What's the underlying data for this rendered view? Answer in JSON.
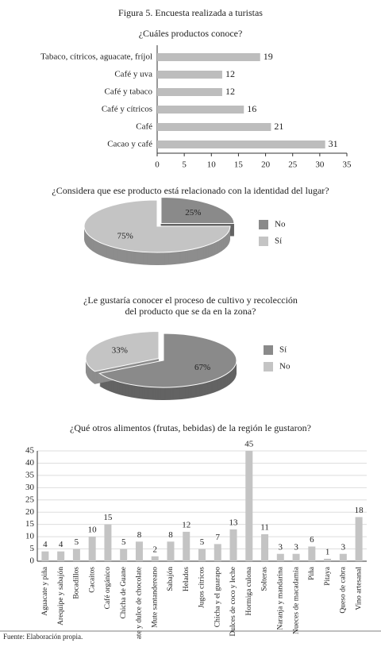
{
  "figure_title": "Figura 5. Encuesta realizada a turistas",
  "source": "Fuente: Elaboración propia.",
  "chart_data": [
    {
      "type": "hbar",
      "title": "¿Cuáles productos conoce?",
      "categories": [
        "Tabaco, cítricos, aguacate, fríjol",
        "Café y uva",
        "Café y tabaco",
        "Café y cítricos",
        "Café",
        "Cacao y café"
      ],
      "values": [
        19,
        12,
        12,
        16,
        21,
        31
      ],
      "color": "#bdbdbd",
      "xlim": [
        0,
        35
      ],
      "xticks": [
        0,
        5,
        10,
        15,
        20,
        25,
        30,
        35
      ]
    },
    {
      "type": "pie",
      "title": "¿Considera que ese producto está relacionado con la identidad del lugar?",
      "categories": [
        "No",
        "Sí"
      ],
      "values": [
        25,
        75
      ],
      "value_labels": [
        "25%",
        "75%"
      ],
      "colors": [
        "#8a8a8a",
        "#c4c4c4"
      ]
    },
    {
      "type": "pie",
      "title": [
        "¿Le gustaría conocer el proceso de cultivo y recolección",
        "del producto que se da en la zona?"
      ],
      "categories": [
        "Sí",
        "No"
      ],
      "values": [
        67,
        33
      ],
      "value_labels": [
        "67%",
        "33%"
      ],
      "colors": [
        "#8a8a8a",
        "#c4c4c4"
      ]
    },
    {
      "type": "bar",
      "title": "¿Qué otros alimentos (frutas, bebidas) de la región le gustaron?",
      "categories": [
        "Aguacate y piña",
        "Arequipe y sabajón",
        "Bocadillos",
        "Cacaitos",
        "Café orgánico",
        "Chicha de Guane",
        "ate y dulce de chocolate",
        "Mute santandereano",
        "Sabajón",
        "Helados",
        "Jugos cítricos",
        "Chicha y el guarapo",
        "Dulces de coco y leche",
        "Hormiga culona",
        "Solteras",
        "Naranja y mandarina",
        "Nueces de macadamia",
        "Piña",
        "Pitaya",
        "Queso de cabra",
        "Vino artesanal"
      ],
      "values": [
        4,
        4,
        5,
        10,
        15,
        5,
        8,
        2,
        8,
        12,
        5,
        7,
        13,
        45,
        11,
        3,
        3,
        6,
        1,
        3,
        18
      ],
      "color": "#c4c4c4",
      "ylim": [
        0,
        45
      ],
      "yticks": [
        0,
        5,
        10,
        15,
        20,
        25,
        30,
        35,
        40,
        45
      ],
      "grid": true
    }
  ]
}
